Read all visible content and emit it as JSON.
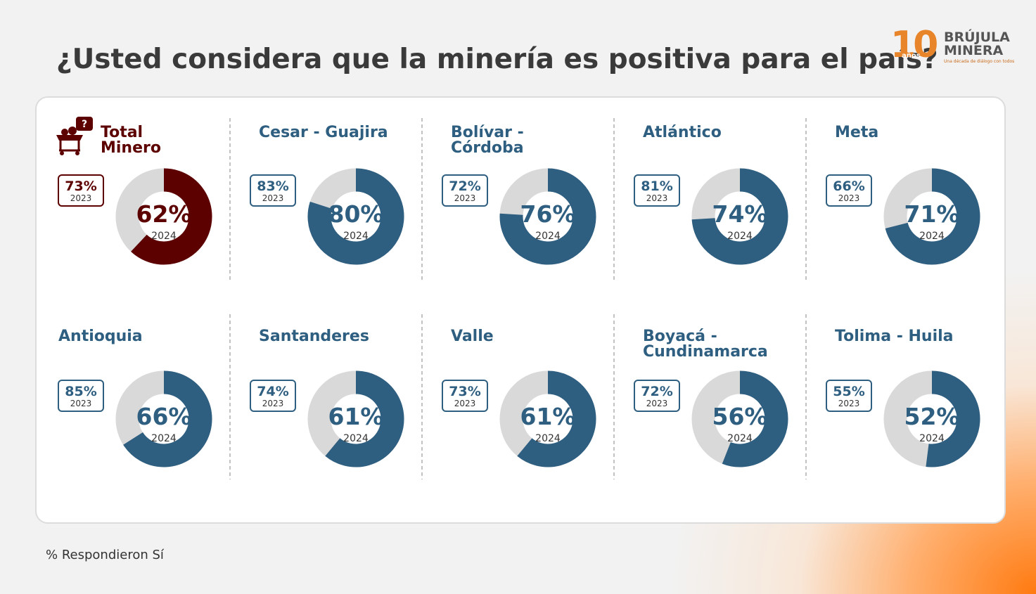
{
  "title": "¿Usted considera que la minería es positiva para el país?",
  "logo": {
    "number": "10",
    "badge": "años",
    "line1": "BRÚJULA",
    "line2": "MINERA",
    "tagline": "Una década de diálogo con todos"
  },
  "footnote": "% Respondieron Sí",
  "chart_data": [
    {
      "type": "donut",
      "title": "Total Minero",
      "values": [
        62
      ],
      "value_labels": [
        "62%"
      ],
      "year": "2024",
      "previous": "73%",
      "previous_year": "2023",
      "color": "#5c0000",
      "track_color": "#d9d9d9"
    },
    {
      "type": "donut",
      "title": "Cesar - Guajira",
      "values": [
        80
      ],
      "value_labels": [
        "80%"
      ],
      "year": "2024",
      "previous": "83%",
      "previous_year": "2023",
      "color": "#2e5e80",
      "track_color": "#d9d9d9"
    },
    {
      "type": "donut",
      "title": "Bolívar - Córdoba",
      "values": [
        76
      ],
      "value_labels": [
        "76%"
      ],
      "year": "2024",
      "previous": "72%",
      "previous_year": "2023",
      "color": "#2e5e80",
      "track_color": "#d9d9d9"
    },
    {
      "type": "donut",
      "title": "Atlántico",
      "values": [
        74
      ],
      "value_labels": [
        "74%"
      ],
      "year": "2024",
      "previous": "81%",
      "previous_year": "2023",
      "color": "#2e5e80",
      "track_color": "#d9d9d9"
    },
    {
      "type": "donut",
      "title": "Meta",
      "values": [
        71
      ],
      "value_labels": [
        "71%"
      ],
      "year": "2024",
      "previous": "66%",
      "previous_year": "2023",
      "color": "#2e5e80",
      "track_color": "#d9d9d9"
    },
    {
      "type": "donut",
      "title": "Antioquia",
      "values": [
        66
      ],
      "value_labels": [
        "66%"
      ],
      "year": "2024",
      "previous": "85%",
      "previous_year": "2023",
      "color": "#2e5e80",
      "track_color": "#d9d9d9"
    },
    {
      "type": "donut",
      "title": "Santanderes",
      "values": [
        61
      ],
      "value_labels": [
        "61%"
      ],
      "year": "2024",
      "previous": "74%",
      "previous_year": "2023",
      "color": "#2e5e80",
      "track_color": "#d9d9d9"
    },
    {
      "type": "donut",
      "title": "Valle",
      "values": [
        61
      ],
      "value_labels": [
        "61%"
      ],
      "year": "2024",
      "previous": "73%",
      "previous_year": "2023",
      "color": "#2e5e80",
      "track_color": "#d9d9d9"
    },
    {
      "type": "donut",
      "title": "Boyacá - Cundinamarca",
      "values": [
        56
      ],
      "value_labels": [
        "56%"
      ],
      "year": "2024",
      "previous": "72%",
      "previous_year": "2023",
      "color": "#2e5e80",
      "track_color": "#d9d9d9"
    },
    {
      "type": "donut",
      "title": "Tolima - Huila",
      "values": [
        52
      ],
      "value_labels": [
        "52%"
      ],
      "year": "2024",
      "previous": "55%",
      "previous_year": "2023",
      "color": "#2e5e80",
      "track_color": "#d9d9d9"
    }
  ]
}
